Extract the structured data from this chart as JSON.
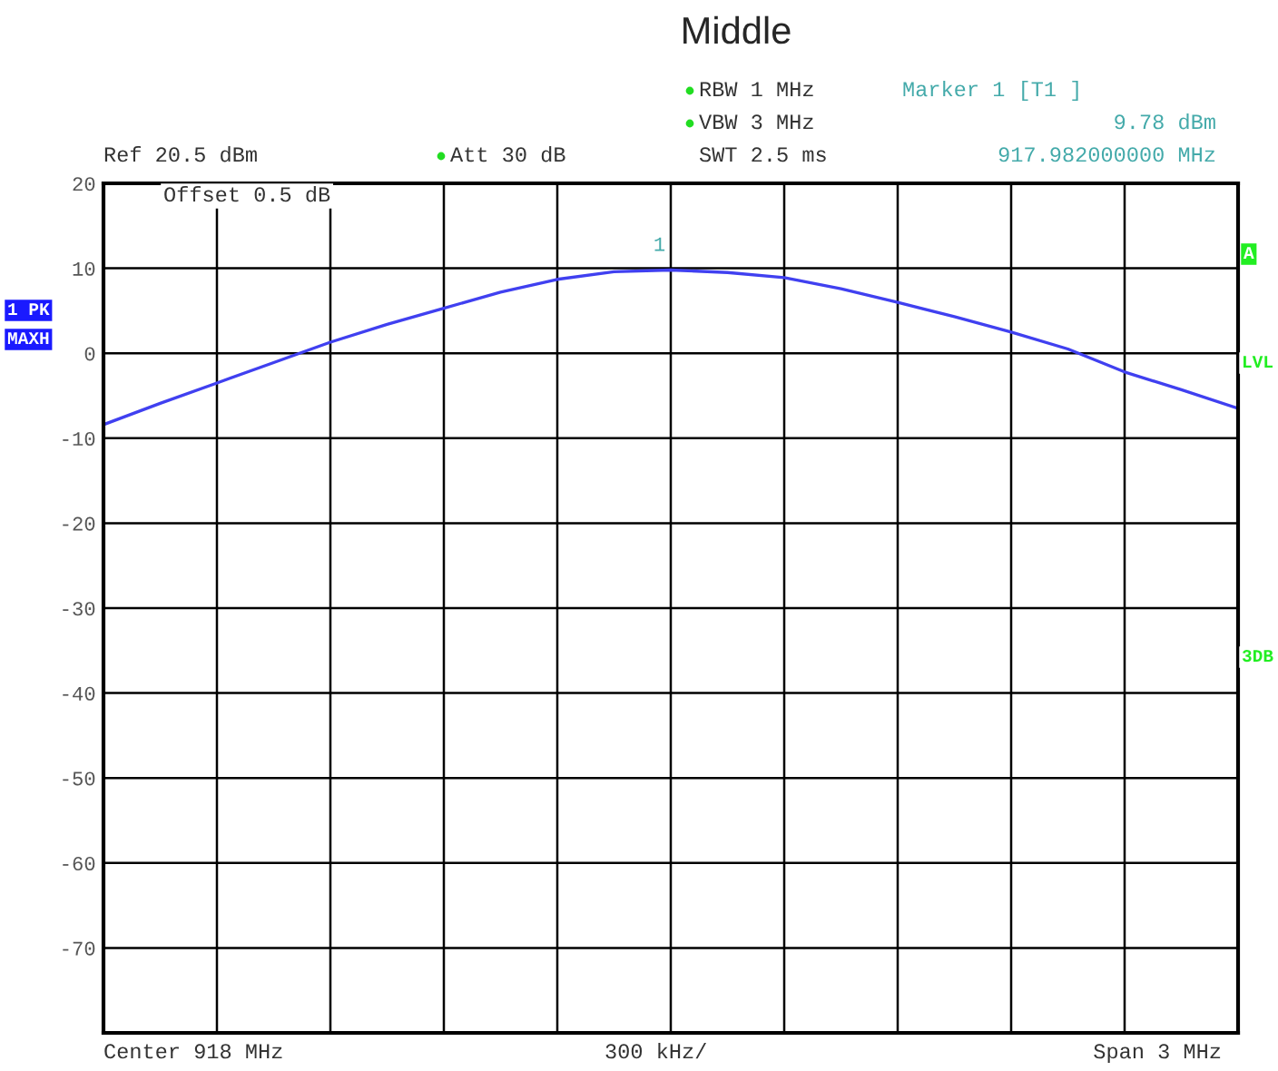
{
  "chart_data": {
    "type": "line",
    "title": "Middle",
    "categories": [
      null,
      null,
      null,
      null,
      null,
      null,
      null,
      null,
      null,
      null,
      null,
      null,
      null,
      null,
      null,
      null,
      null,
      null,
      null,
      null,
      null
    ],
    "series": [
      {
        "color": "#4040f0",
        "values": [
          -8.4,
          -5.9,
          -3.5,
          -1.1,
          1.3,
          3.4,
          5.3,
          7.2,
          8.7,
          9.6,
          9.8,
          9.5,
          8.9,
          7.6,
          6.0,
          4.3,
          2.5,
          0.5,
          -2.2,
          -4.3,
          -6.5
        ]
      }
    ],
    "ylim": [
      -80,
      20
    ],
    "yticks": [
      {
        "value": -80,
        "label": null
      },
      -70,
      -60,
      -50,
      -40,
      -30,
      -20,
      -10,
      0,
      10,
      20
    ],
    "tick_labels": "y",
    "grid": true,
    "marker": "none",
    "line_style": "solid",
    "legend": false,
    "annotations": [
      "RBW 1 MHz",
      "VBW 3 MHz",
      "SWT 2.5 ms",
      "Marker 1 [T1 ]",
      "9.78 dBm",
      "917.982000000 MHz",
      "Ref 20.5 dBm",
      "Att 30 dB",
      "Offset 0.5 dB",
      "1 PK",
      "MAXH",
      "A",
      "LVL",
      "3DB",
      "Center 918 MHz",
      "300 kHz/",
      "Span 3 MHz",
      {
        "text": "1",
        "y": 9.78
      }
    ]
  }
}
